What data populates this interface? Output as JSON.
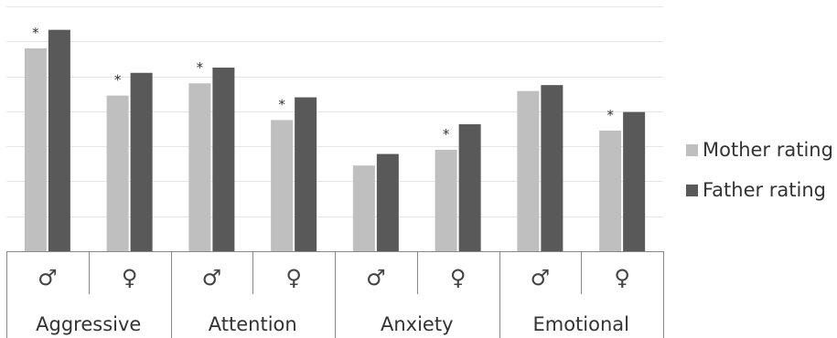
{
  "chart_data": {
    "type": "bar",
    "title": "",
    "xlabel": "",
    "ylabel": "",
    "ylim": [
      0,
      7
    ],
    "grid": true,
    "y_tick_labels_shown": false,
    "legend_position": "right",
    "groups": [
      {
        "label": "Aggressive",
        "subcategories": [
          "♂",
          "♀"
        ]
      },
      {
        "label": "Attention",
        "subcategories": [
          "♂",
          "♀"
        ]
      },
      {
        "label": "Anxiety",
        "subcategories": [
          "♂",
          "♀"
        ]
      },
      {
        "label": "Emotional",
        "subcategories": [
          "♂",
          "♀"
        ]
      }
    ],
    "categories": [
      "Aggressive ♂",
      "Aggressive ♀",
      "Attention ♂",
      "Attention ♀",
      "Anxiety ♂",
      "Anxiety ♀",
      "Emotional ♂",
      "Emotional ♀"
    ],
    "series": [
      {
        "name": "Mother rating",
        "color": "#bfbfbf",
        "values": [
          5.8,
          4.45,
          4.8,
          3.75,
          2.45,
          2.9,
          4.58,
          3.45
        ]
      },
      {
        "name": "Father rating",
        "color": "#595959",
        "values": [
          6.33,
          5.1,
          5.25,
          4.4,
          2.78,
          3.63,
          4.75,
          3.98
        ]
      }
    ],
    "significance_marker": "*",
    "significant": [
      true,
      true,
      true,
      true,
      false,
      true,
      false,
      true
    ]
  }
}
